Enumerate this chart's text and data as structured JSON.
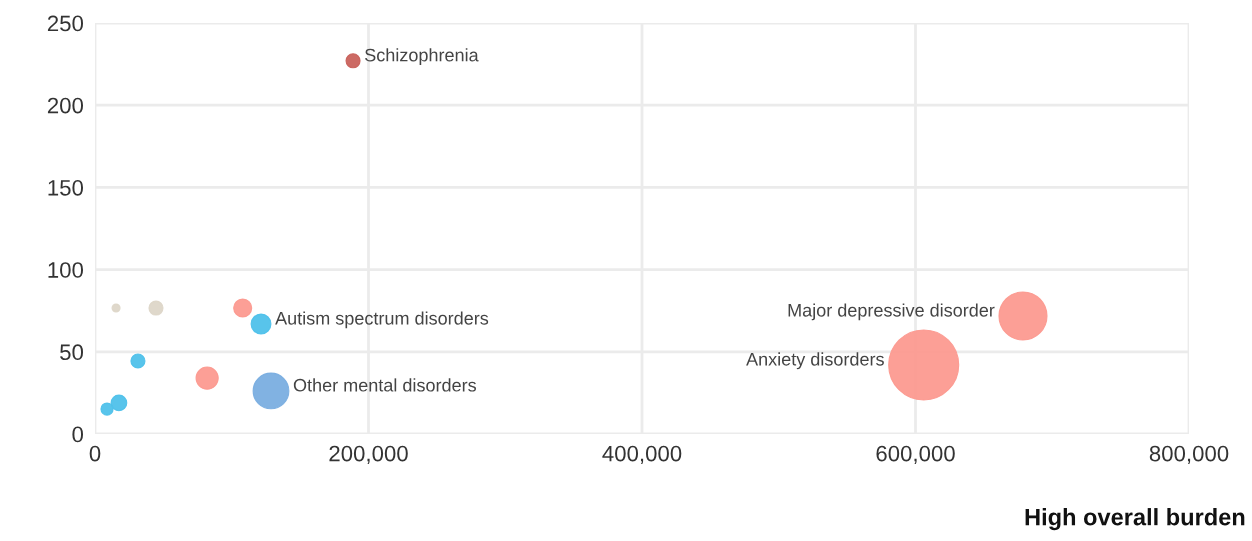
{
  "chart_data": {
    "type": "bubble",
    "xlabel": "High overall burden",
    "x": [
      188700,
      121400,
      128700,
      678600,
      606000,
      108000,
      82000,
      31400,
      17500,
      8800,
      15400,
      44600
    ],
    "values": [
      227,
      66.9,
      26.2,
      71.8,
      42,
      76.6,
      34,
      44.4,
      18.9,
      15.2,
      76.6,
      76.6
    ],
    "sizes": [
      0.04,
      0.08,
      0.26,
      0.47,
      1,
      0.066,
      0.1,
      0.04,
      0.05,
      0.03,
      0.013,
      0.04
    ],
    "colors": [
      "#c9625c",
      "#4fc1ea",
      "#7aaee0",
      "#fc9a90",
      "#fc9a90",
      "#fc9a90",
      "#fc9a90",
      "#4fc1ea",
      "#4fc1ea",
      "#4fc1ea",
      "#ddd6c8",
      "#ddd6c8"
    ],
    "annotations": [
      {
        "text": "Schizophrenia",
        "x": 188700,
        "y": 227
      },
      {
        "text": "Autism spectrum disorders",
        "x": 121400,
        "y": 66.9
      },
      {
        "text": "Other mental disorders",
        "x": 128700,
        "y": 26.2
      },
      {
        "text": "Major depressive disorder",
        "x": 678600,
        "y": 71.8
      },
      {
        "text": "Anxiety disorders",
        "x": 606000,
        "y": 42
      }
    ],
    "xlim": [
      0,
      800000
    ],
    "ylim": [
      0,
      250
    ],
    "xticks": [
      0,
      {
        "value": 200000,
        "label": "200,000"
      },
      {
        "value": 400000,
        "label": "400,000"
      },
      {
        "value": 600000,
        "label": "600,000"
      },
      {
        "value": 800000,
        "label": "800,000"
      }
    ],
    "yticks": [
      0,
      50,
      100,
      150,
      200,
      250
    ],
    "grid": true
  }
}
